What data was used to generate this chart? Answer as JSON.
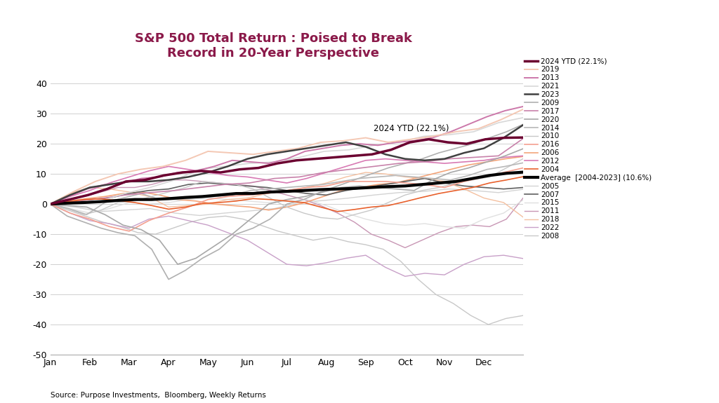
{
  "title": "S&P 500 Total Return : Poised to Break\nRecord in 20-Year Perspective",
  "title_color": "#8B1A4A",
  "source_text": "Source: Purpose Investments,  Bloomberg, Weekly Returns",
  "annotation_text": "2024 YTD (22.1%)",
  "ylim": [
    -50,
    45
  ],
  "yticks": [
    -50,
    -40,
    -30,
    -20,
    -10,
    0,
    10,
    20,
    30,
    40
  ],
  "xlabel_months": [
    "Jan",
    "Feb",
    "Mar",
    "Apr",
    "May",
    "Jun",
    "Jul",
    "Aug",
    "Sep",
    "Oct",
    "Nov",
    "Dec"
  ],
  "series": {
    "2004": {
      "color": "#E8602C",
      "lw": 1.2,
      "zorder": 4,
      "values": [
        0,
        0.8,
        1.5,
        1.7,
        1.2,
        0.5,
        -0.5,
        -1.7,
        -1.0,
        0.2,
        0.5,
        1.0,
        1.8,
        1.5,
        1.0,
        0.5,
        -1.0,
        -2.5,
        -1.8,
        -1.0,
        -0.5,
        0.8,
        2.2,
        3.5,
        4.5,
        5.5,
        7.0,
        8.0,
        9.1
      ]
    },
    "2005": {
      "color": "#d3d3d3",
      "lw": 1.0,
      "zorder": 2,
      "values": [
        0,
        -1.0,
        -2.5,
        -2.0,
        -1.5,
        -3.0,
        -3.8,
        -3.0,
        -2.3,
        -1.5,
        0.5,
        1.2,
        2.0,
        3.0,
        3.8,
        4.2,
        5.0,
        4.5,
        3.8,
        4.9
      ]
    },
    "2006": {
      "color": "#F4A57A",
      "lw": 1.2,
      "zorder": 3,
      "values": [
        0,
        1.0,
        1.8,
        2.5,
        3.5,
        4.0,
        3.0,
        1.5,
        1.0,
        0.0,
        -0.5,
        -1.0,
        -2.0,
        -1.0,
        0.5,
        2.5,
        4.5,
        5.5,
        6.5,
        7.0,
        8.5,
        10.0,
        11.5,
        13.0,
        14.0,
        15.0,
        15.8
      ]
    },
    "2007": {
      "color": "#606060",
      "lw": 1.2,
      "zorder": 3,
      "values": [
        0,
        0.8,
        1.5,
        2.0,
        3.5,
        4.5,
        5.0,
        6.5,
        7.0,
        6.5,
        6.0,
        5.5,
        4.5,
        3.5,
        3.0,
        4.5,
        5.5,
        6.5,
        7.5,
        8.5,
        7.0,
        6.0,
        5.5,
        5.0,
        5.5
      ]
    },
    "2008": {
      "color": "#c8c8c8",
      "lw": 1.0,
      "zorder": 2,
      "values": [
        0,
        -2.0,
        -4.0,
        -6.0,
        -7.5,
        -9.5,
        -10.0,
        -8.0,
        -6.0,
        -4.5,
        -4.0,
        -5.0,
        -7.0,
        -9.0,
        -10.5,
        -12.0,
        -11.0,
        -12.5,
        -13.5,
        -15.0,
        -19.0,
        -25.0,
        -30.0,
        -33.0,
        -37.0,
        -40.0,
        -38.0,
        -37.0
      ]
    },
    "2009": {
      "color": "#b0b0b0",
      "lw": 1.2,
      "zorder": 3,
      "values": [
        0,
        -4.0,
        -6.0,
        -8.0,
        -9.5,
        -10.5,
        -15.0,
        -25.0,
        -22.0,
        -18.0,
        -15.0,
        -10.0,
        -8.0,
        -5.0,
        0.0,
        1.5,
        4.0,
        6.0,
        8.0,
        10.0,
        12.0,
        13.5,
        15.0,
        17.0,
        18.5,
        20.0,
        22.0,
        24.0,
        26.5
      ]
    },
    "2010": {
      "color": "#c8c8c8",
      "lw": 1.0,
      "zorder": 3,
      "values": [
        0,
        -1.5,
        -3.5,
        -2.0,
        0.5,
        1.0,
        2.5,
        4.0,
        5.5,
        7.5,
        7.0,
        6.5,
        5.0,
        2.0,
        -1.0,
        -3.0,
        -4.5,
        -5.0,
        -3.5,
        -2.0,
        0.5,
        3.0,
        4.5,
        5.5,
        7.0,
        8.0,
        9.0,
        12.0,
        15.1
      ]
    },
    "2011": {
      "color": "#C896B4",
      "lw": 1.0,
      "zorder": 2,
      "values": [
        0,
        1.5,
        2.5,
        4.0,
        5.5,
        5.5,
        6.5,
        8.0,
        8.0,
        7.5,
        7.0,
        6.5,
        6.0,
        4.5,
        3.0,
        1.5,
        -0.5,
        -3.0,
        -6.0,
        -10.0,
        -12.0,
        -14.5,
        -12.0,
        -9.5,
        -7.5,
        -7.0,
        -7.5,
        -5.0,
        2.1
      ]
    },
    "2012": {
      "color": "#D87AB4",
      "lw": 1.2,
      "zorder": 3,
      "values": [
        0,
        2.5,
        4.5,
        7.0,
        9.0,
        11.0,
        12.5,
        11.5,
        10.5,
        9.5,
        9.0,
        8.0,
        7.0,
        8.5,
        10.5,
        12.5,
        14.5,
        15.0,
        14.5,
        14.0,
        13.5,
        14.0,
        14.5,
        15.5,
        16.0
      ]
    },
    "2013": {
      "color": "#CC78AA",
      "lw": 1.4,
      "zorder": 4,
      "values": [
        0,
        2.5,
        5.0,
        6.5,
        7.0,
        8.5,
        9.0,
        10.5,
        11.0,
        12.5,
        14.5,
        14.0,
        13.5,
        15.0,
        17.5,
        18.5,
        19.5,
        20.0,
        19.5,
        20.5,
        21.0,
        22.0,
        24.0,
        26.5,
        29.0,
        31.0,
        32.4
      ]
    },
    "2014": {
      "color": "#b8b8b8",
      "lw": 1.2,
      "zorder": 3,
      "values": [
        0,
        -1.5,
        -3.5,
        0.5,
        2.0,
        3.5,
        1.5,
        1.5,
        2.0,
        2.5,
        3.0,
        4.5,
        5.0,
        5.5,
        6.0,
        6.5,
        7.5,
        8.5,
        9.0,
        9.5,
        9.0,
        8.5,
        8.0,
        9.5,
        11.5,
        12.5,
        13.7
      ]
    },
    "2015": {
      "color": "#e0e0e0",
      "lw": 1.0,
      "zorder": 2,
      "values": [
        0,
        -1.5,
        -3.0,
        -1.5,
        0.5,
        0.0,
        0.5,
        1.5,
        2.0,
        1.5,
        1.0,
        0.5,
        1.0,
        1.5,
        -0.5,
        -3.0,
        -5.0,
        -6.5,
        -7.0,
        -6.5,
        -7.5,
        -8.0,
        -5.0,
        -3.0,
        1.4
      ]
    },
    "2016": {
      "color": "#F4A090",
      "lw": 1.2,
      "zorder": 3,
      "values": [
        0,
        -3.0,
        -5.0,
        -7.5,
        -9.0,
        -5.5,
        -3.0,
        -1.0,
        1.5,
        2.5,
        3.0,
        3.5,
        4.5,
        5.5,
        6.0,
        7.5,
        7.5,
        7.5,
        7.0,
        6.5,
        5.5,
        7.5,
        9.0,
        10.5,
        12.0
      ]
    },
    "2017": {
      "color": "#C882AA",
      "lw": 1.2,
      "zorder": 3,
      "values": [
        0,
        1.0,
        1.8,
        3.0,
        3.8,
        4.5,
        5.5,
        6.5,
        7.0,
        8.5,
        9.0,
        10.5,
        11.5,
        12.5,
        13.5,
        14.0,
        15.0,
        15.5,
        16.0,
        21.8
      ]
    },
    "2018": {
      "color": "#F4C0A0",
      "lw": 1.0,
      "zorder": 2,
      "values": [
        0,
        3.5,
        5.5,
        5.0,
        4.0,
        2.5,
        -1.0,
        -0.5,
        0.0,
        1.5,
        2.0,
        3.5,
        4.5,
        5.5,
        7.0,
        9.0,
        10.5,
        10.0,
        9.0,
        8.5,
        7.5,
        5.0,
        2.0,
        0.5,
        -4.4
      ]
    },
    "2019": {
      "color": "#F4C8B4",
      "lw": 1.4,
      "zorder": 4,
      "values": [
        0,
        4.0,
        7.5,
        10.0,
        11.5,
        12.5,
        14.5,
        17.5,
        17.0,
        16.5,
        17.5,
        18.5,
        20.5,
        21.0,
        22.0,
        20.5,
        21.5,
        22.5,
        24.0,
        25.0,
        28.0,
        31.5
      ]
    },
    "2020": {
      "color": "#a8a8a8",
      "lw": 1.2,
      "zorder": 3,
      "values": [
        0,
        -0.5,
        -1.0,
        -3.5,
        -7.0,
        -8.5,
        -12.0,
        -20.0,
        -18.0,
        -14.0,
        -10.0,
        -5.0,
        0.0,
        1.5,
        2.5,
        4.0,
        5.5,
        6.0,
        5.5,
        5.0,
        4.5,
        8.0,
        10.5,
        12.0,
        14.0,
        16.0,
        18.4
      ]
    },
    "2021": {
      "color": "#d8d8d8",
      "lw": 1.2,
      "zorder": 3,
      "values": [
        0,
        0.5,
        1.0,
        3.5,
        5.5,
        8.0,
        11.5,
        12.5,
        13.5,
        14.0,
        15.5,
        17.5,
        18.0,
        19.5,
        20.5,
        22.5,
        23.0,
        24.0,
        27.0,
        28.7
      ]
    },
    "2022": {
      "color": "#C8A0C8",
      "lw": 1.0,
      "zorder": 2,
      "values": [
        0,
        -3.0,
        -5.5,
        -6.5,
        -8.0,
        -5.0,
        -4.0,
        -5.5,
        -7.0,
        -9.5,
        -12.0,
        -16.0,
        -20.0,
        -20.5,
        -19.5,
        -18.0,
        -17.0,
        -21.0,
        -24.0,
        -23.0,
        -23.5,
        -20.0,
        -17.5,
        -17.0,
        -18.1
      ]
    },
    "2023": {
      "color": "#404040",
      "lw": 1.8,
      "zorder": 5,
      "values": [
        0,
        3.0,
        5.5,
        6.5,
        7.5,
        7.5,
        8.0,
        9.0,
        10.5,
        12.5,
        15.0,
        16.5,
        17.5,
        18.5,
        19.5,
        20.5,
        19.0,
        16.5,
        15.0,
        14.5,
        15.0,
        17.0,
        18.5,
        22.0,
        26.3
      ]
    },
    "2024": {
      "color": "#6B0030",
      "lw": 2.5,
      "zorder": 10,
      "values": [
        0,
        1.5,
        3.0,
        5.0,
        7.5,
        8.0,
        9.5,
        10.5,
        11.0,
        10.5,
        11.5,
        12.0,
        13.5,
        14.5,
        15.0,
        15.5,
        16.0,
        16.5,
        18.0,
        20.5,
        21.5,
        20.5,
        20.0,
        21.5,
        22.0,
        22.1
      ]
    },
    "Average": {
      "color": "#000000",
      "lw": 3.0,
      "zorder": 8,
      "values": [
        0,
        0.3,
        0.5,
        0.8,
        1.2,
        1.5,
        1.5,
        1.8,
        2.2,
        2.5,
        3.0,
        3.5,
        3.5,
        4.0,
        4.2,
        4.5,
        4.8,
        5.0,
        5.2,
        5.5,
        5.8,
        6.0,
        6.5,
        7.0,
        7.5,
        8.5,
        9.5,
        10.2,
        10.6
      ]
    }
  },
  "legend_order": [
    [
      "2024",
      "2024 YTD (22.1%)",
      "#6B0030",
      2.5
    ],
    [
      "2019",
      "2019",
      "#F4C8B4",
      1.4
    ],
    [
      "2013",
      "2013",
      "#CC78AA",
      1.4
    ],
    [
      "2021",
      "2021",
      "#d8d8d8",
      1.2
    ],
    [
      "2023",
      "2023",
      "#404040",
      1.8
    ],
    [
      "2009",
      "2009",
      "#b0b0b0",
      1.2
    ],
    [
      "2017",
      "2017",
      "#C882AA",
      1.2
    ],
    [
      "2020",
      "2020",
      "#a8a8a8",
      1.2
    ],
    [
      "2014",
      "2014",
      "#b8b8b8",
      1.2
    ],
    [
      "2010",
      "2010",
      "#c8c8c8",
      1.0
    ],
    [
      "2016",
      "2016",
      "#F4A090",
      1.2
    ],
    [
      "2006",
      "2006",
      "#F4A57A",
      1.2
    ],
    [
      "2012",
      "2012",
      "#D87AB4",
      1.2
    ],
    [
      "2004",
      "2004",
      "#E8602C",
      1.2
    ],
    [
      "Average",
      "Average  [2004-2023] (10.6%)",
      "#000000",
      3.0
    ],
    [
      "2005",
      "2005",
      "#d3d3d3",
      1.0
    ],
    [
      "2007",
      "2007",
      "#606060",
      1.2
    ],
    [
      "2015",
      "2015",
      "#e0e0e0",
      1.0
    ],
    [
      "2011",
      "2011",
      "#C896B4",
      1.0
    ],
    [
      "2018",
      "2018",
      "#F4C0A0",
      1.0
    ],
    [
      "2022",
      "2022",
      "#C8A0C8",
      1.0
    ],
    [
      "2008",
      "2008",
      "#c8c8c8",
      1.0
    ]
  ]
}
